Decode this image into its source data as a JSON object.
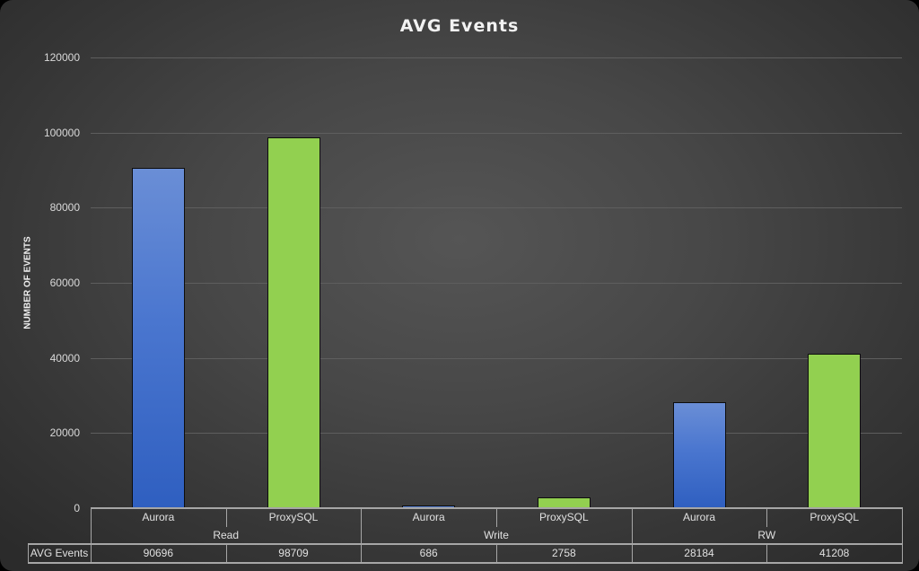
{
  "chart_data": {
    "type": "bar",
    "title": "AVG Events",
    "xlabel": "",
    "ylabel": "NUMBER OF EVENTS",
    "ylim": [
      0,
      120000
    ],
    "yticks": [
      "0",
      "20000",
      "40000",
      "60000",
      "80000",
      "100000",
      "120000"
    ],
    "grid": true,
    "legend_position": "data-table",
    "group_labels": [
      "Read",
      "Write",
      "RW"
    ],
    "categories": [
      "Aurora",
      "ProxySQL",
      "Aurora",
      "ProxySQL",
      "Aurora",
      "ProxySQL"
    ],
    "series": [
      {
        "name": "AVG Events",
        "values": [
          90696,
          98709,
          686,
          2758,
          28184,
          41208
        ]
      }
    ],
    "colors": {
      "Aurora": "#4472c4",
      "ProxySQL": "#92d050"
    }
  },
  "table": {
    "row_label": "AVG Events",
    "values_text": [
      "90696",
      "98709",
      "686",
      "2758",
      "28184",
      "41208"
    ]
  }
}
